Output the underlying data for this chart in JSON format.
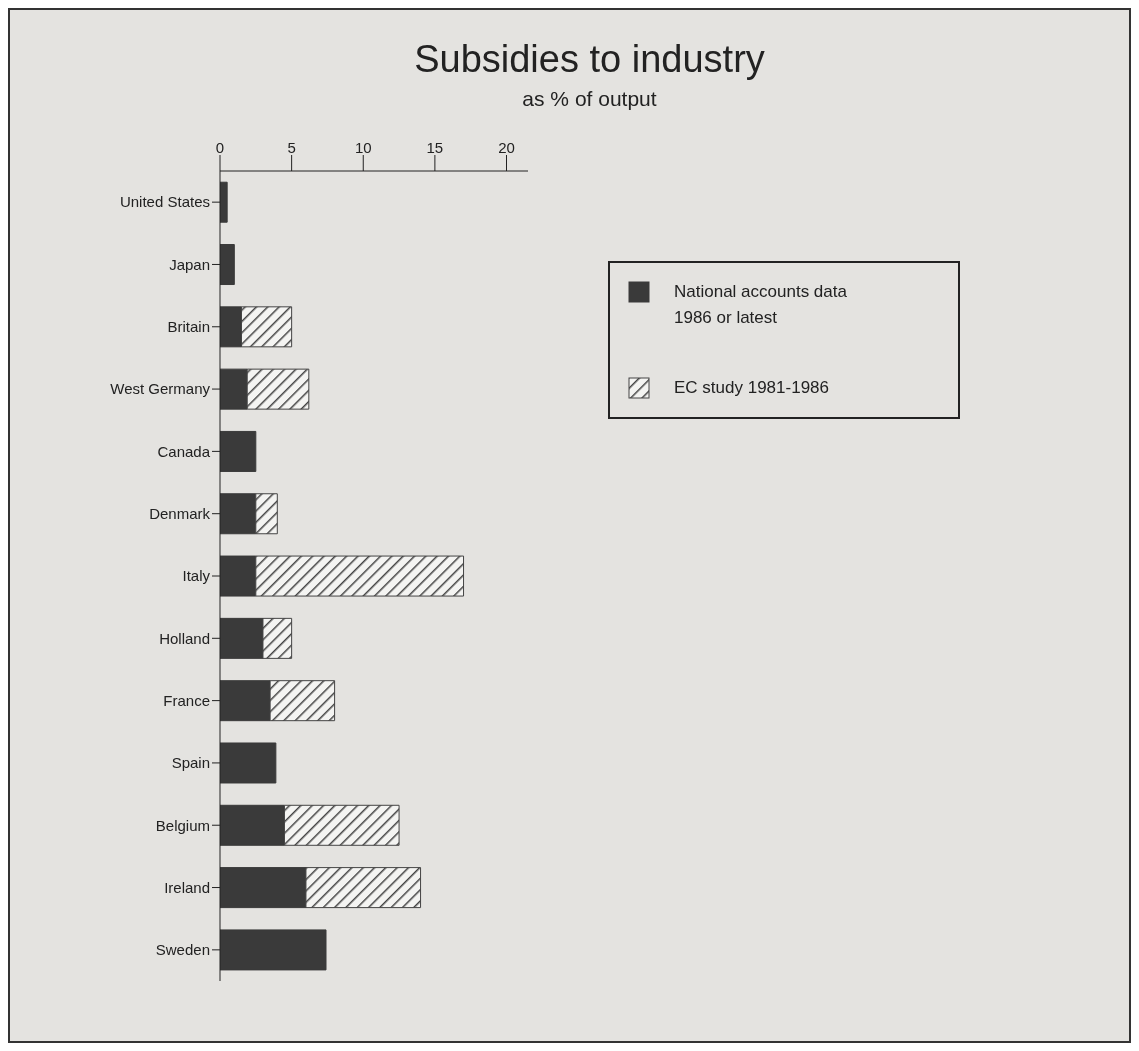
{
  "chart_data": {
    "type": "bar",
    "title": "Subsidies to industry",
    "subtitle": "as % of output",
    "orientation": "horizontal",
    "stacked": true,
    "categories": [
      "United States",
      "Japan",
      "Britain",
      "West Germany",
      "Canada",
      "Denmark",
      "Italy",
      "Holland",
      "France",
      "Spain",
      "Belgium",
      "Ireland",
      "Sweden"
    ],
    "series": [
      {
        "name": "National accounts data 1986 or latest",
        "color": "#3a3a3a",
        "values": [
          0.5,
          1.0,
          1.5,
          1.9,
          2.5,
          2.5,
          2.5,
          3.0,
          3.5,
          3.9,
          4.5,
          6.0,
          7.4
        ]
      },
      {
        "name": "EC study 1981-1986",
        "color": "#444444",
        "values": [
          null,
          null,
          3.5,
          4.3,
          null,
          1.5,
          14.5,
          2.0,
          4.5,
          null,
          8.0,
          8.0,
          null
        ]
      }
    ],
    "xlim": [
      0,
      21.5
    ],
    "xticks": [
      0,
      5,
      10,
      15,
      20
    ],
    "grid": false,
    "legend": "top right"
  }
}
